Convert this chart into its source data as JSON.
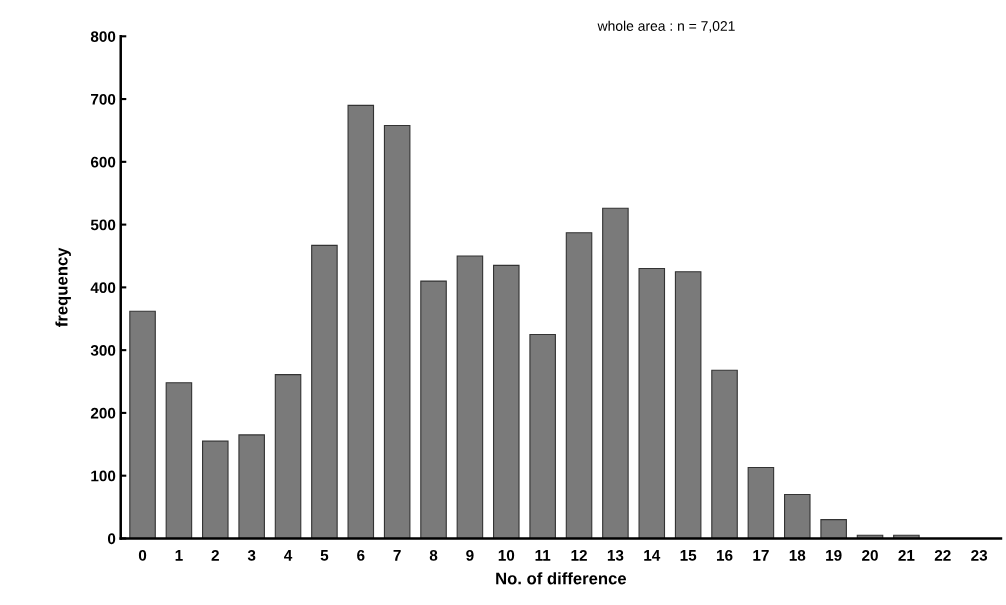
{
  "chart_data": {
    "type": "bar",
    "title": "whole area : n = 7,021",
    "xlabel": "No. of difference",
    "ylabel": "frequency",
    "categories": [
      "0",
      "1",
      "2",
      "3",
      "4",
      "5",
      "6",
      "7",
      "8",
      "9",
      "10",
      "11",
      "12",
      "13",
      "14",
      "15",
      "16",
      "17",
      "18",
      "19",
      "20",
      "21",
      "22",
      "23"
    ],
    "values": [
      362,
      248,
      155,
      165,
      261,
      467,
      690,
      658,
      410,
      450,
      435,
      325,
      487,
      526,
      430,
      425,
      268,
      113,
      70,
      30,
      5,
      5,
      0,
      0
    ],
    "color": "#7a7a7a",
    "ylim": [
      0,
      800
    ],
    "yticks": [
      0,
      100,
      200,
      300,
      400,
      500,
      600,
      700,
      800
    ],
    "grid": false,
    "legend": false
  }
}
